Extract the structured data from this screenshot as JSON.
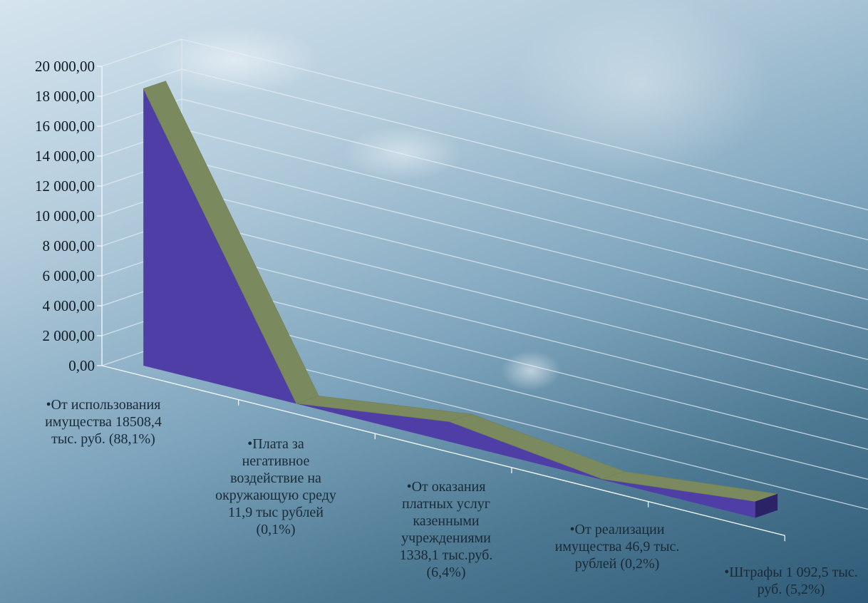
{
  "chart_data": {
    "type": "area",
    "title": "",
    "xlabel": "",
    "ylabel": "",
    "ylim": [
      0,
      20000
    ],
    "y_ticks": [
      "0,00",
      "2 000,00",
      "4 000,00",
      "6 000,00",
      "8 000,00",
      "10 000,00",
      "12 000,00",
      "14 000,00",
      "16 000,00",
      "18 000,00",
      "20 000,00"
    ],
    "grid": true,
    "legend": "none",
    "three_d": true,
    "categories": [
      "•От использования имущества 18508,4 тыс. руб. (88,1%)",
      "•Плата за негативное воздействие на окружающую среду 11,9 тыс рублей (0,1%)",
      "•От оказания платных услуг казенными учреждениями 1338,1 тыс.руб. (6,4%)",
      "•От реализации имущества 46,9 тыс. рублей (0,2%)",
      "•Штрафы 1 092,5 тыс. руб. (5,2%)"
    ],
    "values": [
      18508.4,
      11.9,
      1338.1,
      46.9,
      1092.5
    ],
    "colors": {
      "front": "#4f3ea6",
      "top": "#7a8a5e",
      "side": "#2a2466",
      "grid": "#e6eef3",
      "axis": "#f2f6f9"
    }
  }
}
